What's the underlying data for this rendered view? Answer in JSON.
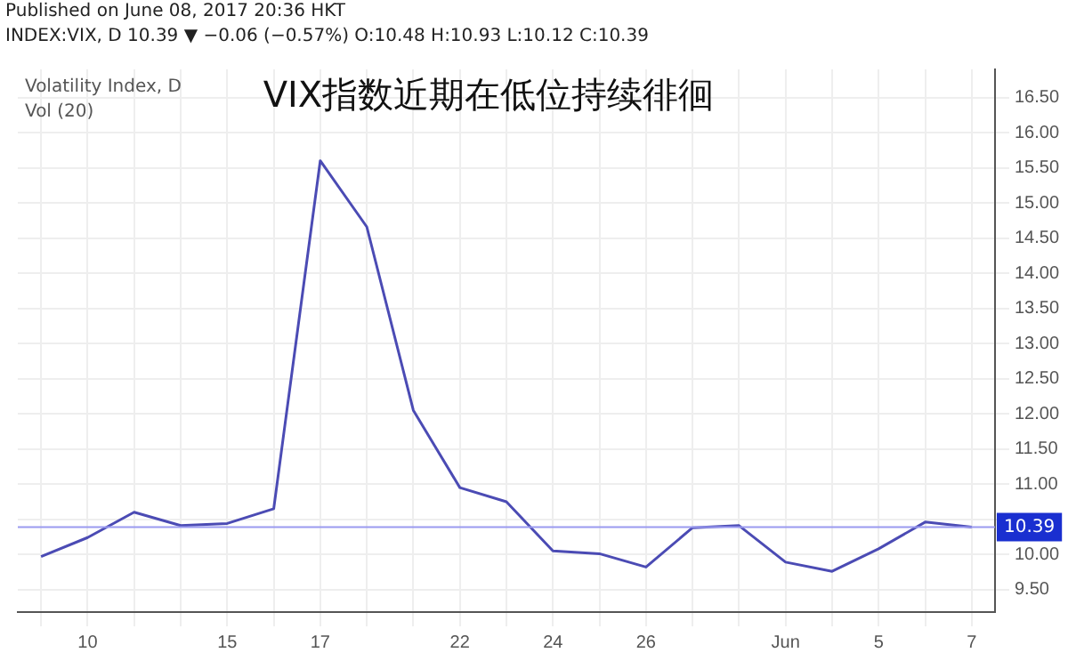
{
  "chart_data": {
    "type": "line",
    "title": "VIX指数近期在低位持续徘徊",
    "annotations": [
      "Published on June 08, 2017 20:36 HKT",
      "INDEX:VIX, D  10.39 ▼ −0.06 (−0.57%) O:10.48 H:10.93 L:10.12 C:10.39",
      "Volatility Index, D",
      "Vol (20)"
    ],
    "categories": [
      null,
      "10",
      null,
      null,
      "15",
      null,
      "17",
      null,
      null,
      "22",
      null,
      "24",
      null,
      "26",
      null,
      null,
      "Jun",
      null,
      "5",
      null,
      "7"
    ],
    "series": [
      {
        "color": "#4b4bb4",
        "values": [
          9.97,
          10.24,
          10.6,
          10.41,
          10.44,
          10.65,
          15.6,
          14.66,
          12.05,
          10.95,
          10.75,
          10.05,
          10.01,
          9.82,
          10.38,
          10.41,
          9.89,
          9.76,
          10.08,
          10.46,
          10.39
        ]
      }
    ],
    "ylim": [
      9.18,
      16.9
    ],
    "yticks": [
      {
        "value": 9.5,
        "label": "9.50"
      },
      {
        "value": 10,
        "label": "10.00"
      },
      {
        "value": 10.5,
        "label": null
      },
      {
        "value": 11,
        "label": "11.00"
      },
      {
        "value": 11.5,
        "label": "11.50"
      },
      {
        "value": 12,
        "label": "12.00"
      },
      {
        "value": 12.5,
        "label": "12.50"
      },
      {
        "value": 13,
        "label": "13.00"
      },
      {
        "value": 13.5,
        "label": "13.50"
      },
      {
        "value": 14,
        "label": "14.00"
      },
      {
        "value": 14.5,
        "label": "14.50"
      },
      {
        "value": 15,
        "label": "15.00"
      },
      {
        "value": 15.5,
        "label": "15.50"
      },
      {
        "value": 16,
        "label": "16.00"
      },
      {
        "value": 16.5,
        "label": "16.50"
      }
    ],
    "ref_lines": [
      {
        "axis": "y",
        "value": 10.39,
        "label": "10.39",
        "color": "#9a9af0"
      }
    ],
    "grid": true,
    "legend": false,
    "marker": "none",
    "line_style": "solid"
  }
}
